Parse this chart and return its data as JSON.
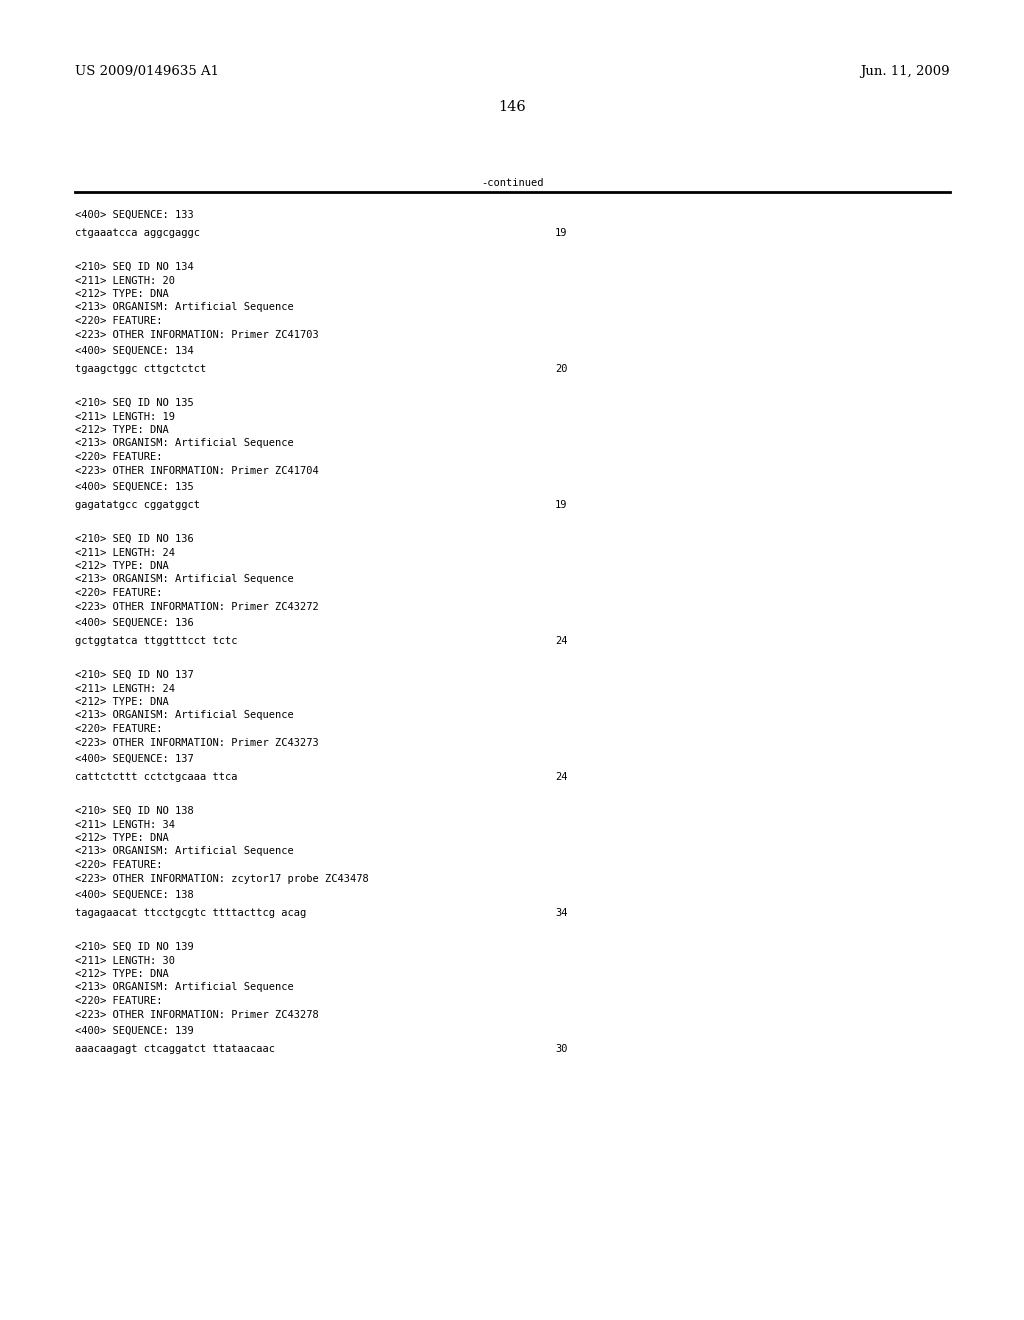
{
  "header_left": "US 2009/0149635 A1",
  "header_right": "Jun. 11, 2009",
  "page_number": "146",
  "continued_text": "-continued",
  "background_color": "#ffffff",
  "text_color": "#000000",
  "font_size_header": 9.5,
  "font_size_page": 10.5,
  "font_size_body": 7.5,
  "content": [
    {
      "type": "seq_entry",
      "tag": "<400> SEQUENCE: 133",
      "sequence": "ctgaaatcca aggcgaggc",
      "length": "19"
    },
    {
      "type": "annotation_block",
      "lines": [
        "<210> SEQ ID NO 134",
        "<211> LENGTH: 20",
        "<212> TYPE: DNA",
        "<213> ORGANISM: Artificial Sequence",
        "<220> FEATURE:",
        "<223> OTHER INFORMATION: Primer ZC41703"
      ]
    },
    {
      "type": "seq_entry",
      "tag": "<400> SEQUENCE: 134",
      "sequence": "tgaagctggc cttgctctct",
      "length": "20"
    },
    {
      "type": "annotation_block",
      "lines": [
        "<210> SEQ ID NO 135",
        "<211> LENGTH: 19",
        "<212> TYPE: DNA",
        "<213> ORGANISM: Artificial Sequence",
        "<220> FEATURE:",
        "<223> OTHER INFORMATION: Primer ZC41704"
      ]
    },
    {
      "type": "seq_entry",
      "tag": "<400> SEQUENCE: 135",
      "sequence": "gagatatgcc cggatggct",
      "length": "19"
    },
    {
      "type": "annotation_block",
      "lines": [
        "<210> SEQ ID NO 136",
        "<211> LENGTH: 24",
        "<212> TYPE: DNA",
        "<213> ORGANISM: Artificial Sequence",
        "<220> FEATURE:",
        "<223> OTHER INFORMATION: Primer ZC43272"
      ]
    },
    {
      "type": "seq_entry",
      "tag": "<400> SEQUENCE: 136",
      "sequence": "gctggtatca ttggtttcct tctc",
      "length": "24"
    },
    {
      "type": "annotation_block",
      "lines": [
        "<210> SEQ ID NO 137",
        "<211> LENGTH: 24",
        "<212> TYPE: DNA",
        "<213> ORGANISM: Artificial Sequence",
        "<220> FEATURE:",
        "<223> OTHER INFORMATION: Primer ZC43273"
      ]
    },
    {
      "type": "seq_entry",
      "tag": "<400> SEQUENCE: 137",
      "sequence": "cattctcttt cctctgcaaa ttca",
      "length": "24"
    },
    {
      "type": "annotation_block",
      "lines": [
        "<210> SEQ ID NO 138",
        "<211> LENGTH: 34",
        "<212> TYPE: DNA",
        "<213> ORGANISM: Artificial Sequence",
        "<220> FEATURE:",
        "<223> OTHER INFORMATION: zcytor17 probe ZC43478"
      ]
    },
    {
      "type": "seq_entry",
      "tag": "<400> SEQUENCE: 138",
      "sequence": "tagagaacat ttcctgcgtc ttttacttcg acag",
      "length": "34"
    },
    {
      "type": "annotation_block",
      "lines": [
        "<210> SEQ ID NO 139",
        "<211> LENGTH: 30",
        "<212> TYPE: DNA",
        "<213> ORGANISM: Artificial Sequence",
        "<220> FEATURE:",
        "<223> OTHER INFORMATION: Primer ZC43278"
      ]
    },
    {
      "type": "seq_entry",
      "tag": "<400> SEQUENCE: 139",
      "sequence": "aaacaagagt ctcaggatct ttataacaac",
      "length": "30"
    }
  ]
}
